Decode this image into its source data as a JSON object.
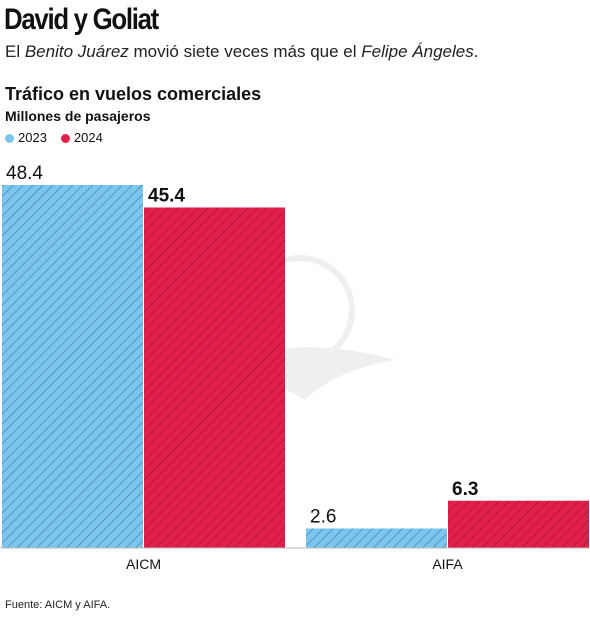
{
  "header": {
    "headline": "David y Goliat",
    "subhead_parts": [
      "El ",
      "Benito Juárez",
      " movió siete veces más que el ",
      "Felipe Ángeles",
      "."
    ]
  },
  "footer": {
    "source": "Fuente: AICM y AIFA."
  },
  "colors": {
    "series_2023": "#7cc6ee",
    "series_2024": "#e0204a",
    "hatch": "#3a7fb0",
    "hatch_red": "#a8102e"
  },
  "chart_data": {
    "type": "bar",
    "title": "Tráfico en vuelos comerciales",
    "ylabel": "Millones de pasajeros",
    "xlabel": "",
    "categories": [
      "AICM",
      "AIFA"
    ],
    "series": [
      {
        "name": "2023",
        "values": [
          48.4,
          2.6
        ],
        "value_labels": [
          "48.4",
          "2.6"
        ]
      },
      {
        "name": "2024",
        "values": [
          45.4,
          6.3
        ],
        "value_labels": [
          "45.4",
          "6.3"
        ]
      }
    ],
    "ylim": [
      0,
      48.4
    ],
    "grid": false,
    "legend": "top-left"
  }
}
